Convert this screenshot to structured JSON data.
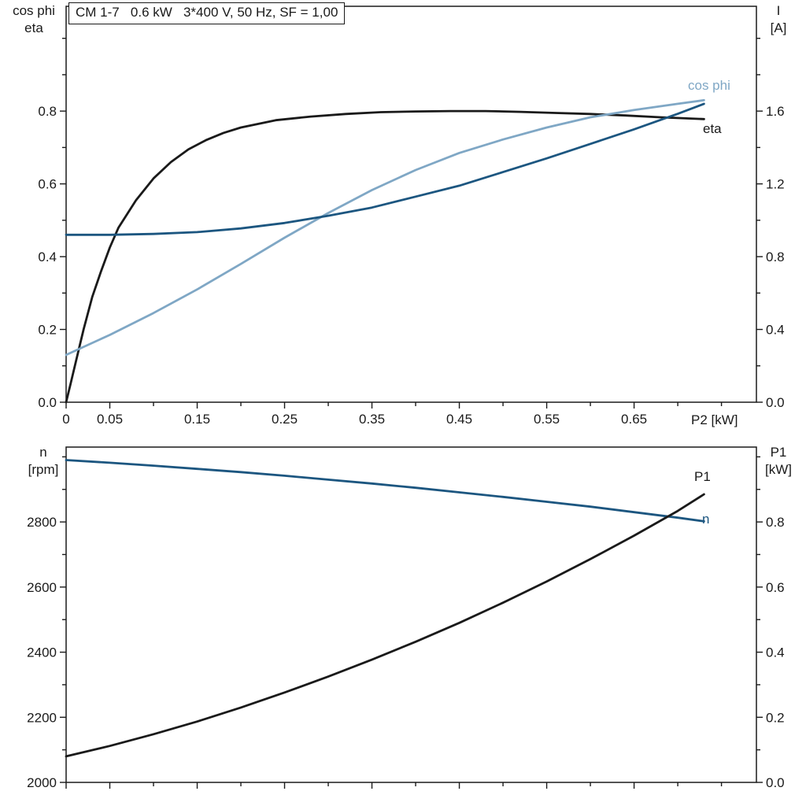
{
  "colors": {
    "black": "#1a1a1a",
    "dark_blue": "#1c5680",
    "light_blue": "#7fa7c5",
    "background": "#ffffff"
  },
  "chart_data": [
    {
      "type": "line",
      "title": "CM 1-7   0.6 kW   3*400 V, 50 Hz, SF = 1,00",
      "xlabel": "P2 [kW]",
      "ylabel_left": "cos phi / eta",
      "ylabel_right": "I [A]",
      "labels": {
        "left": [
          "cos phi",
          "eta"
        ],
        "right": [
          "I",
          "[A]"
        ],
        "x": "P2 [kW]",
        "curve_cos_phi": "cos phi",
        "curve_eta": "eta"
      },
      "xlim": [
        0,
        0.79
      ],
      "ylim_left": [
        0,
        1.088
      ],
      "ylim_right": [
        0,
        2.176
      ],
      "grid": false,
      "x_ticks": {
        "values": [
          0,
          0.05,
          0.15,
          0.25,
          0.35,
          0.45,
          0.55,
          0.65
        ],
        "labels": [
          "0",
          "0.05",
          "0.15",
          "0.25",
          "0.35",
          "0.45",
          "0.55",
          "0.65"
        ]
      },
      "x_minor_step": 0.05,
      "yl_ticks": {
        "values": [
          0,
          0.2,
          0.4,
          0.6,
          0.8
        ],
        "labels": [
          "0.0",
          "0.2",
          "0.4",
          "0.6",
          "0.8"
        ]
      },
      "yl_minor_step": 0.1,
      "yr_ticks": {
        "values": [
          0,
          0.4,
          0.8,
          1.2,
          1.6
        ],
        "labels": [
          "0.0",
          "0.4",
          "0.8",
          "1.2",
          "1.6"
        ]
      },
      "yr_minor_step": 0.2,
      "series": [
        {
          "name": "eta",
          "axis": "left",
          "color": "#1a1a1a",
          "x": [
            0,
            0.005,
            0.01,
            0.02,
            0.03,
            0.04,
            0.05,
            0.06,
            0.08,
            0.1,
            0.12,
            0.14,
            0.16,
            0.18,
            0.2,
            0.24,
            0.28,
            0.32,
            0.36,
            0.4,
            0.44,
            0.48,
            0.52,
            0.56,
            0.6,
            0.64,
            0.68,
            0.73
          ],
          "y": [
            0,
            0.05,
            0.1,
            0.2,
            0.29,
            0.36,
            0.425,
            0.48,
            0.555,
            0.615,
            0.66,
            0.695,
            0.72,
            0.74,
            0.755,
            0.775,
            0.785,
            0.792,
            0.797,
            0.799,
            0.8,
            0.8,
            0.798,
            0.795,
            0.792,
            0.788,
            0.783,
            0.778
          ]
        },
        {
          "name": "cos phi",
          "axis": "left",
          "color": "#7fa7c5",
          "x": [
            0,
            0.05,
            0.1,
            0.15,
            0.2,
            0.25,
            0.3,
            0.35,
            0.4,
            0.45,
            0.5,
            0.55,
            0.6,
            0.65,
            0.7,
            0.73
          ],
          "y": [
            0.13,
            0.185,
            0.245,
            0.31,
            0.38,
            0.452,
            0.52,
            0.583,
            0.638,
            0.685,
            0.722,
            0.755,
            0.783,
            0.803,
            0.82,
            0.83
          ]
        },
        {
          "name": "I",
          "axis": "right",
          "color": "#1c5680",
          "x": [
            0,
            0.05,
            0.1,
            0.15,
            0.2,
            0.25,
            0.3,
            0.35,
            0.4,
            0.45,
            0.5,
            0.55,
            0.6,
            0.65,
            0.7,
            0.73
          ],
          "y": [
            0.92,
            0.92,
            0.925,
            0.935,
            0.955,
            0.985,
            1.025,
            1.07,
            1.13,
            1.19,
            1.265,
            1.34,
            1.42,
            1.5,
            1.585,
            1.64
          ]
        }
      ]
    },
    {
      "type": "line",
      "title": "",
      "xlabel": "",
      "ylabel_left": "n [rpm]",
      "ylabel_right": "P1 [kW]",
      "labels": {
        "left": [
          "n",
          "[rpm]"
        ],
        "right": [
          "P1",
          "[kW]"
        ],
        "curve_p1": "P1",
        "curve_n": "n"
      },
      "xlim": [
        0,
        0.79
      ],
      "ylim_left": [
        2000,
        3030
      ],
      "ylim_right": [
        0,
        1.03
      ],
      "grid": false,
      "x_ticks": {
        "values": [
          0,
          0.05,
          0.15,
          0.25,
          0.35,
          0.45,
          0.55,
          0.65
        ],
        "labels": []
      },
      "x_minor_step": 0.05,
      "yl_ticks": {
        "values": [
          2000,
          2200,
          2400,
          2600,
          2800
        ],
        "labels": [
          "2000",
          "2200",
          "2400",
          "2600",
          "2800"
        ]
      },
      "yl_minor_step": 100,
      "yr_ticks": {
        "values": [
          0,
          0.2,
          0.4,
          0.6,
          0.8
        ],
        "labels": [
          "0.0",
          "0.2",
          "0.4",
          "0.6",
          "0.8"
        ]
      },
      "yr_minor_step": 0.1,
      "series": [
        {
          "name": "n",
          "axis": "left",
          "color": "#1c5680",
          "x": [
            0,
            0.05,
            0.1,
            0.15,
            0.2,
            0.25,
            0.3,
            0.35,
            0.4,
            0.45,
            0.5,
            0.55,
            0.6,
            0.65,
            0.7,
            0.73
          ],
          "y": [
            2990,
            2982,
            2973,
            2963,
            2953,
            2942,
            2930,
            2918,
            2905,
            2891,
            2877,
            2862,
            2847,
            2830,
            2813,
            2802
          ]
        },
        {
          "name": "P1",
          "axis": "right",
          "color": "#1a1a1a",
          "x": [
            0,
            0.05,
            0.1,
            0.15,
            0.2,
            0.25,
            0.3,
            0.35,
            0.4,
            0.45,
            0.5,
            0.55,
            0.6,
            0.65,
            0.7,
            0.73
          ],
          "y": [
            0.08,
            0.112,
            0.148,
            0.187,
            0.23,
            0.276,
            0.325,
            0.377,
            0.432,
            0.49,
            0.552,
            0.617,
            0.686,
            0.758,
            0.834,
            0.885
          ]
        }
      ]
    }
  ]
}
